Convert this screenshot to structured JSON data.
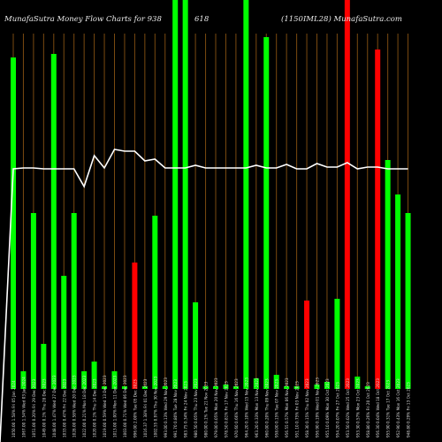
{
  "header": {
    "left": "MunafaSutra  Money Flow  Charts for 938",
    "middle": "618",
    "right": "(1150IML28) MunafaSutra.com"
  },
  "chart_data": {
    "type": "bar",
    "title": "MunafaSutra  Money Flow  Charts for 938 618 (1150IML28) MunafaSutra.com",
    "ylim": [
      0,
      440
    ],
    "categories": [
      "Fri 05 Jan 2024",
      "Wed 03 Jan 2024",
      "Fri 29 Dec 2023",
      "Thu 28 Dec 2023",
      "Wed 27 Dec 2023",
      "Fri 22 Dec 2023",
      "Wed 20 Dec 2023",
      "Mon 18 Dec 2023",
      "Thu 14 Dec 2023",
      "Wed 13 Dec 2023",
      "Mon 11 Dec 2023",
      "Wed 06 Dec 2023",
      "Tue 05 Dec 2023",
      "Fri 01 Dec 2023",
      "Thu 30 Nov 2023",
      "Wed 29 Nov 2023",
      "Tue 28 Nov 2023",
      "Fri 24 Nov 2023",
      "Thu 23 Nov 2023",
      "Tue 21 Nov 2023",
      "Mon 20 Nov 2023",
      "Fri 17 Nov 2023",
      "Thu 16 Nov 2023",
      "Wed 15 Nov 2023",
      "Mon 13 Nov 2023",
      "Thu 09 Nov 2023",
      "Tue 07 Nov 2023",
      "Mon 06 Nov 2023",
      "Fri 03 Nov 2023",
      "Thu 02 Nov 2023",
      "Wed 01 Nov 2023",
      "Mon 30 Oct 2023",
      "Fri 27 Oct 2023",
      "Wed 25 Oct 2023",
      "Mon 23 Oct 2023",
      "Fri 20 Oct 2023",
      "Wed 18 Oct 2023",
      "Tue 17 Oct 2023",
      "Mon 16 Oct 2023",
      "Fri 13 Oct 2023"
    ],
    "tick_labels": [
      "1050.00 1.58%",
      "1067.00 1.54%",
      "1051.00 0.20%",
      "1049.00 0.1%",
      "1048.00 1.47%",
      "1033.00 0.47%",
      "1028.00 0.58%",
      "1022.00 0.21%",
      "1020.00 0.1%",
      "1019.00 0.59%",
      "1013.00 1.00%",
      "1003.00 0.71%",
      "996.00 2.00%",
      "1016.37 1.38%",
      "1002.55 0.97%",
      "993.00 0.13%",
      "991.70 0.80%",
      "983.75 0.34%",
      "980.50 0.05%",
      "980.00 0.1%",
      "979.00 0.05%",
      "978.50 0.81%",
      "970.60 0.66%",
      "964.20 0.10%",
      "963.20 0.33%",
      "960.00 0.20%",
      "958.00 0.15%",
      "956.55 0.57%",
      "951.10 0.75%",
      "958.30 0.15%",
      "956.90 0.19%",
      "955.10 0.09%",
      "954.20 0.07%",
      "953.50 0.02%",
      "953.30 0.57%",
      "958.80 0.26%",
      "956.30 0.04%",
      "955.90 0.31%",
      "952.90 0.43%",
      "948.80 0.29%"
    ],
    "series": [
      {
        "values": [
          375,
          20,
          199,
          51,
          379,
          128,
          199,
          20,
          31,
          3,
          20,
          3,
          143,
          3,
          196,
          3,
          440,
          440,
          98,
          3,
          3,
          5,
          3,
          440,
          12,
          398,
          16,
          3,
          3,
          100,
          5,
          8,
          102,
          440,
          14,
          3,
          384,
          259,
          220,
          199
        ],
        "flow": [
          "in",
          "in",
          "in",
          "in",
          "in",
          "in",
          "in",
          "in",
          "in",
          "in",
          "in",
          "in",
          "out",
          "in",
          "in",
          "in",
          "in",
          "in",
          "in",
          "in",
          "in",
          "in",
          "in",
          "in",
          "in",
          "in",
          "in",
          "in",
          "in",
          "out",
          "in",
          "in",
          "in",
          "out",
          "in",
          "in",
          "out",
          "in",
          "in",
          "in"
        ],
        "colors": {
          "in": "#00ff00",
          "out": "#ff0000"
        }
      },
      {
        "type": "line",
        "color": "#ffffff",
        "values": [
          249,
          250,
          250,
          249,
          249,
          249,
          249,
          229,
          264,
          250,
          271,
          269,
          269,
          258,
          260,
          250,
          250,
          250,
          253,
          250,
          250,
          250,
          250,
          250,
          253,
          250,
          250,
          254,
          249,
          249,
          255,
          251,
          251,
          256,
          249,
          251,
          251,
          249,
          249,
          249
        ]
      }
    ]
  }
}
